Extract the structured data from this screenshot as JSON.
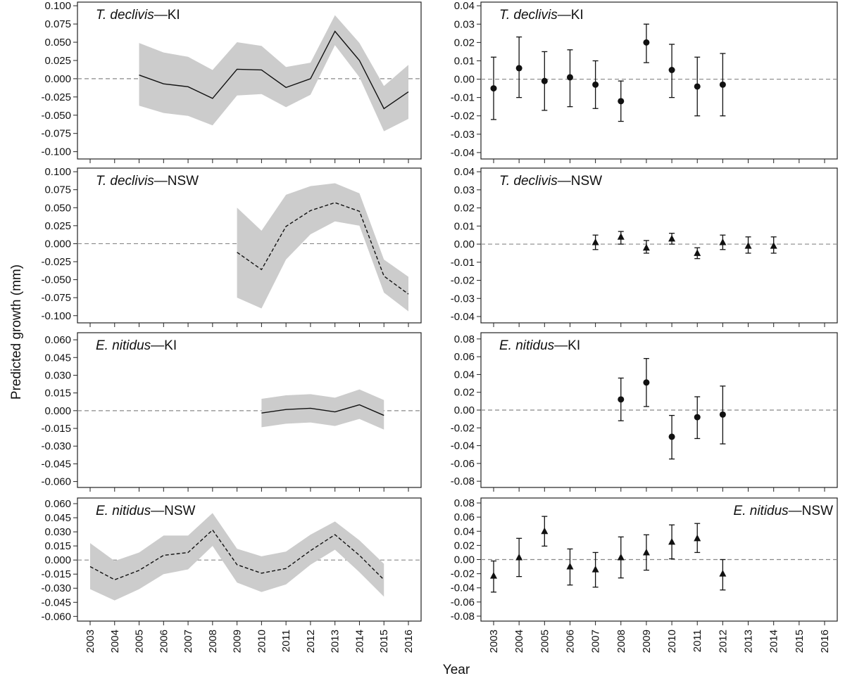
{
  "figure": {
    "ylabel": "Predicted growth (mm)",
    "xlabel": "Year",
    "colors": {
      "band": "#cccccc",
      "line": "#111111",
      "zero": "#888888",
      "frame": "#222222"
    }
  },
  "chart_data": [
    {
      "id": "L1",
      "type": "area",
      "species": "T. declivis",
      "region": "KI",
      "line_style": "solid",
      "legend_pos": "top-left",
      "ylim": [
        -0.11,
        0.105
      ],
      "yticks": [
        "0.100",
        "0.075",
        "0.050",
        "0.025",
        "0.000",
        "-0.025",
        "-0.050",
        "-0.075",
        "-0.100"
      ],
      "x": [
        2005,
        2006,
        2007,
        2008,
        2009,
        2010,
        2011,
        2012,
        2013,
        2014,
        2015,
        2016
      ],
      "y": [
        0.005,
        -0.007,
        -0.011,
        -0.027,
        0.013,
        0.012,
        -0.012,
        0.0,
        0.065,
        0.025,
        -0.041,
        -0.018
      ],
      "lower": [
        -0.037,
        -0.047,
        -0.051,
        -0.064,
        -0.023,
        -0.021,
        -0.039,
        -0.022,
        0.046,
        0.002,
        -0.072,
        -0.055
      ],
      "upper": [
        0.049,
        0.036,
        0.03,
        0.012,
        0.05,
        0.045,
        0.016,
        0.022,
        0.087,
        0.049,
        -0.01,
        0.019
      ]
    },
    {
      "id": "R1",
      "type": "scatter",
      "species": "T. declivis",
      "region": "KI",
      "marker": "circle",
      "legend_pos": "top-left",
      "ylim": [
        -0.0435,
        0.042
      ],
      "yticks": [
        "0.04",
        "0.03",
        "0.02",
        "0.01",
        "0.00",
        "-0.01",
        "-0.02",
        "-0.03",
        "-0.04"
      ],
      "x": [
        2003,
        2004,
        2005,
        2006,
        2007,
        2008,
        2009,
        2010,
        2011,
        2012
      ],
      "y": [
        -0.005,
        0.006,
        -0.001,
        0.001,
        -0.003,
        -0.012,
        0.02,
        0.005,
        -0.004,
        -0.003
      ],
      "lower": [
        -0.022,
        -0.01,
        -0.017,
        -0.015,
        -0.016,
        -0.023,
        0.009,
        -0.01,
        -0.02,
        -0.02
      ],
      "upper": [
        0.012,
        0.023,
        0.015,
        0.016,
        0.01,
        -0.001,
        0.03,
        0.019,
        0.012,
        0.014
      ]
    },
    {
      "id": "L2",
      "type": "area",
      "species": "T. declivis",
      "region": "NSW",
      "line_style": "dashed",
      "legend_pos": "top-left",
      "ylim": [
        -0.11,
        0.105
      ],
      "yticks": [
        "0.100",
        "0.075",
        "0.050",
        "0.025",
        "0.000",
        "-0.025",
        "-0.050",
        "-0.075",
        "-0.100"
      ],
      "x": [
        2009,
        2010,
        2011,
        2012,
        2013,
        2014,
        2015,
        2016
      ],
      "y": [
        -0.012,
        -0.036,
        0.024,
        0.046,
        0.057,
        0.045,
        -0.045,
        -0.07
      ],
      "lower": [
        -0.075,
        -0.09,
        -0.022,
        0.013,
        0.031,
        0.025,
        -0.068,
        -0.094
      ],
      "upper": [
        0.05,
        0.018,
        0.068,
        0.08,
        0.084,
        0.07,
        -0.022,
        -0.046
      ]
    },
    {
      "id": "R2",
      "type": "scatter",
      "species": "T. declivis",
      "region": "NSW",
      "marker": "triangle",
      "legend_pos": "top-left",
      "ylim": [
        -0.0435,
        0.042
      ],
      "yticks": [
        "0.04",
        "0.03",
        "0.02",
        "0.01",
        "0.00",
        "-0.01",
        "-0.02",
        "-0.03",
        "-0.04"
      ],
      "x": [
        2007,
        2008,
        2009,
        2010,
        2011,
        2012,
        2013,
        2014
      ],
      "y": [
        0.001,
        0.004,
        -0.002,
        0.003,
        -0.005,
        0.001,
        -0.001,
        -0.001
      ],
      "lower": [
        -0.003,
        0.0,
        -0.005,
        0.0,
        -0.008,
        -0.003,
        -0.005,
        -0.005
      ],
      "upper": [
        0.005,
        0.007,
        0.002,
        0.006,
        -0.002,
        0.005,
        0.004,
        0.004
      ]
    },
    {
      "id": "L3",
      "type": "area",
      "species": "E. nitidus",
      "region": "KI",
      "line_style": "solid",
      "legend_pos": "top-left",
      "ylim": [
        -0.065,
        0.066
      ],
      "yticks": [
        "0.060",
        "0.045",
        "0.030",
        "0.015",
        "0.000",
        "-0.015",
        "-0.030",
        "-0.045",
        "-0.060"
      ],
      "x": [
        2010,
        2011,
        2012,
        2013,
        2014,
        2015
      ],
      "y": [
        -0.002,
        0.001,
        0.002,
        -0.001,
        0.005,
        -0.004
      ],
      "lower": [
        -0.014,
        -0.011,
        -0.01,
        -0.013,
        -0.007,
        -0.016
      ],
      "upper": [
        0.01,
        0.013,
        0.014,
        0.011,
        0.018,
        0.009
      ]
    },
    {
      "id": "R3",
      "type": "scatter",
      "species": "E. nitidus",
      "region": "KI",
      "marker": "circle",
      "legend_pos": "top-left",
      "ylim": [
        -0.087,
        0.087
      ],
      "yticks": [
        "0.08",
        "0.06",
        "0.04",
        "0.02",
        "0.00",
        "-0.02",
        "-0.04",
        "-0.06",
        "-0.08"
      ],
      "x": [
        2008,
        2009,
        2010,
        2011,
        2012
      ],
      "y": [
        0.012,
        0.031,
        -0.03,
        -0.008,
        -0.005
      ],
      "lower": [
        -0.012,
        0.004,
        -0.055,
        -0.032,
        -0.038
      ],
      "upper": [
        0.036,
        0.058,
        -0.006,
        0.015,
        0.027
      ]
    },
    {
      "id": "L4",
      "type": "area",
      "species": "E. nitidus",
      "region": "NSW",
      "line_style": "dashed",
      "legend_pos": "top-left",
      "ylim": [
        -0.065,
        0.066
      ],
      "yticks": [
        "0.060",
        "0.045",
        "0.030",
        "0.015",
        "0.000",
        "-0.015",
        "-0.030",
        "-0.045",
        "-0.060"
      ],
      "x": [
        2003,
        2004,
        2005,
        2006,
        2007,
        2008,
        2009,
        2010,
        2011,
        2012,
        2013,
        2014,
        2015
      ],
      "y": [
        -0.007,
        -0.021,
        -0.011,
        0.005,
        0.008,
        0.032,
        -0.005,
        -0.014,
        -0.009,
        0.01,
        0.027,
        0.005,
        -0.021
      ],
      "lower": [
        -0.031,
        -0.043,
        -0.031,
        -0.015,
        -0.01,
        0.015,
        -0.024,
        -0.034,
        -0.026,
        -0.005,
        0.011,
        -0.013,
        -0.039
      ],
      "upper": [
        0.018,
        -0.001,
        0.008,
        0.026,
        0.026,
        0.05,
        0.012,
        0.004,
        0.009,
        0.027,
        0.041,
        0.021,
        -0.004
      ]
    },
    {
      "id": "R4",
      "type": "scatter",
      "species": "E. nitidus",
      "region": "NSW",
      "marker": "triangle",
      "legend_pos": "top-right",
      "ylim": [
        -0.087,
        0.087
      ],
      "yticks": [
        "0.08",
        "0.06",
        "0.04",
        "0.02",
        "0.00",
        "-0.02",
        "-0.04",
        "-0.06",
        "-0.08"
      ],
      "x": [
        2003,
        2004,
        2005,
        2006,
        2007,
        2008,
        2009,
        2010,
        2011,
        2012
      ],
      "y": [
        -0.023,
        0.003,
        0.04,
        -0.01,
        -0.014,
        0.003,
        0.01,
        0.025,
        0.03,
        -0.02
      ],
      "lower": [
        -0.046,
        -0.024,
        0.019,
        -0.036,
        -0.039,
        -0.026,
        -0.015,
        0.001,
        0.01,
        -0.043
      ],
      "upper": [
        -0.002,
        0.03,
        0.061,
        0.015,
        0.01,
        0.032,
        0.035,
        0.049,
        0.051,
        0.0
      ]
    }
  ],
  "x_axis": {
    "years": [
      2003,
      2004,
      2005,
      2006,
      2007,
      2008,
      2009,
      2010,
      2011,
      2012,
      2013,
      2014,
      2015,
      2016
    ],
    "labels": [
      "2003",
      "2004",
      "2005",
      "2006",
      "2007",
      "2008",
      "2009",
      "2010",
      "2011",
      "2012",
      "2013",
      "2014",
      "2015",
      "2016"
    ]
  }
}
